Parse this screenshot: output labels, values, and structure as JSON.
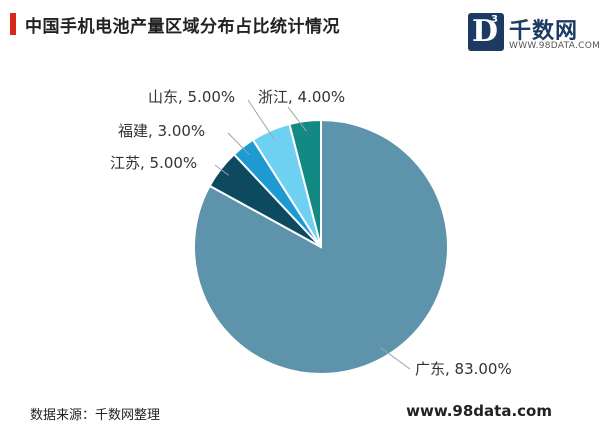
{
  "title": "中国手机电池产量区域分布占比统计情况",
  "logo": {
    "mark_letter": "D",
    "mark_superscript": "3",
    "name": "千数网",
    "url": "WWW.98DATA.COM"
  },
  "source": "数据来源：千数网整理",
  "site": "www.98data.com",
  "colors": {
    "title_accent": "#d9271e",
    "logo_blue": "#1c3a63"
  },
  "chart_data": {
    "type": "pie",
    "start_angle_deg": 0,
    "direction": "clockwise",
    "slices": [
      {
        "name": "广东",
        "value": 83.0,
        "label": "广东, 83.00%",
        "color": "#5e94ab"
      },
      {
        "name": "江苏",
        "value": 5.0,
        "label": "江苏, 5.00%",
        "color": "#0d4a60"
      },
      {
        "name": "福建",
        "value": 3.0,
        "label": "福建, 3.00%",
        "color": "#1d9ad2"
      },
      {
        "name": "山东",
        "value": 5.0,
        "label": "山东, 5.00%",
        "color": "#6fd1f2"
      },
      {
        "name": "浙江",
        "value": 4.0,
        "label": "浙江, 4.00%",
        "color": "#128a83"
      }
    ]
  }
}
